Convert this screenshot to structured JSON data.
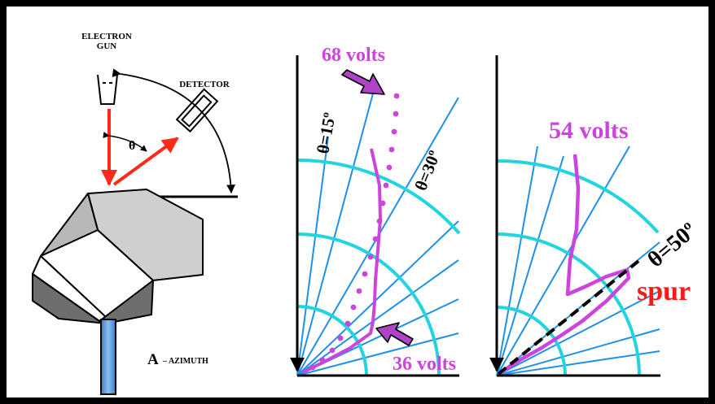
{
  "left_panel": {
    "gun_label_line1": "ELECTRON",
    "gun_label_line2": "GUN",
    "detector_label": "DETECTOR",
    "theta_symbol": "θ",
    "azimuth_letter": "A",
    "azimuth_text": "– AZIMUTH"
  },
  "middle_panel": {
    "label_68": "68 volts",
    "label_36": "36 volts",
    "label_theta15": "θ=15º",
    "label_theta30": "θ=30º"
  },
  "right_panel": {
    "label_54": "54 volts",
    "label_theta50": "θ=50º",
    "label_spur": "spur"
  },
  "colors": {
    "magenta": "#cc44dd",
    "magenta_arrow": "#b044c8",
    "cyan": "#22d3e0",
    "blue_line": "#1e90e8",
    "red_beam": "#ff2a1a",
    "spur_red": "#ff1a1a"
  }
}
